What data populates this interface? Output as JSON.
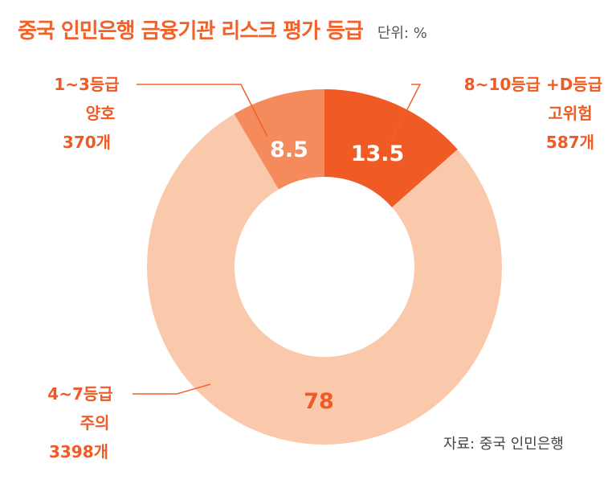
{
  "header": {
    "title": "중국 인민은행 금융기관 리스크 평가 등급",
    "unit": "단위: %"
  },
  "source": "자료: 중국 인민은행",
  "colors": {
    "high_risk": "#f05a24",
    "good": "#f58b5c",
    "caution": "#fac9ab",
    "label_dark": "#f05a24",
    "accent": "#f0622a"
  },
  "chart_data": {
    "type": "pie",
    "donut": true,
    "unit": "%",
    "slices": [
      {
        "category": "8~10등급 +D등급",
        "sublabel": "고위험",
        "count": "587개",
        "value": 13.5,
        "value_label": "13.5"
      },
      {
        "category": "4~7등급",
        "sublabel": "주의",
        "count": "3398개",
        "value": 78,
        "value_label": "78"
      },
      {
        "category": "1~3등급",
        "sublabel": "양호",
        "count": "370개",
        "value": 8.5,
        "value_label": "8.5"
      }
    ]
  }
}
